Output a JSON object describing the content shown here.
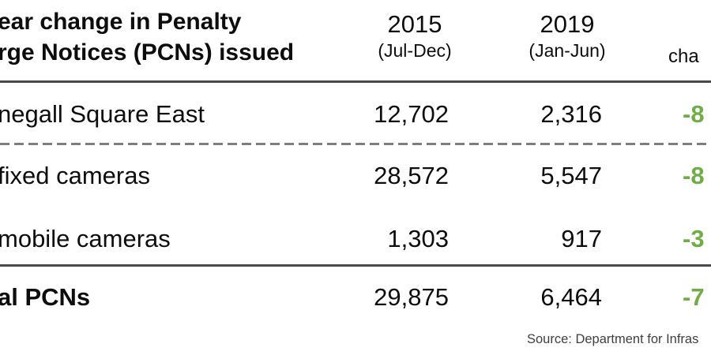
{
  "chart_data": {
    "type": "table",
    "title_lines": [
      "ear change in Penalty",
      "rge Notices (PCNs) issued"
    ],
    "columns": [
      {
        "year": "2015",
        "period": "(Jul-Dec)"
      },
      {
        "year": "2019",
        "period": "(Jan-Jun)"
      },
      {
        "label": "cha"
      }
    ],
    "rows": [
      {
        "label": "negall Square East",
        "y2015": "12,702",
        "y2019": "2,316",
        "change": "-8"
      },
      {
        "label": "fixed cameras",
        "y2015": "28,572",
        "y2019": "5,547",
        "change": "-8"
      },
      {
        "label": "mobile cameras",
        "y2015": "1,303",
        "y2019": "917",
        "change": "-3"
      },
      {
        "label": "al PCNs",
        "y2015": "29,875",
        "y2019": "6,464",
        "change": "-7"
      }
    ],
    "source": "Source: Department for Infras",
    "layout_hints": {
      "dashed_separator_after_row": 0,
      "solid_rule_before_row": 3,
      "total_row_bold": true
    }
  },
  "colors": {
    "change_green": "#70AD47",
    "rule_dark": "#4a4a4a",
    "rule_dashed_gray": "#7f7f7f",
    "source_text": "#404040",
    "body_text": "#0d0d0d",
    "background": "#ffffff"
  }
}
